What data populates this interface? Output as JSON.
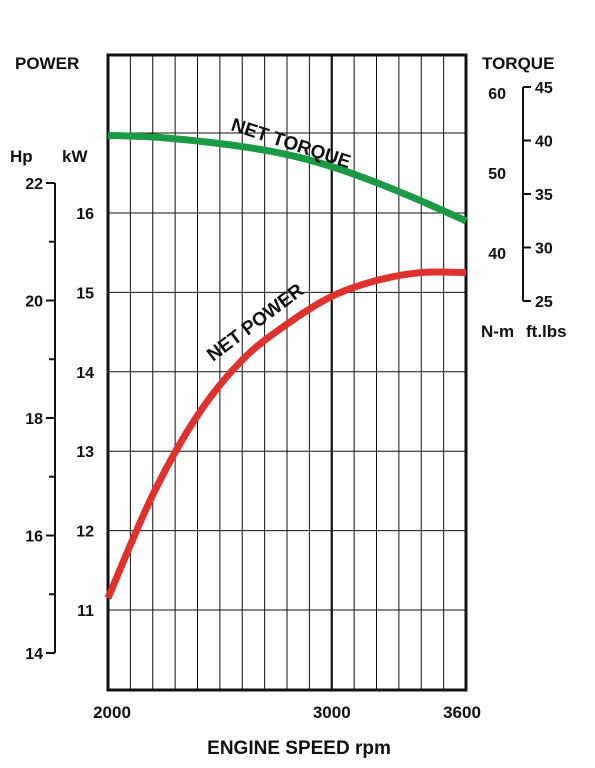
{
  "chart_data": {
    "type": "line",
    "x_unit_label": "ENGINE SPEED rpm",
    "x_range": [
      2000,
      3600
    ],
    "x_ticks": [
      2000,
      3000,
      3600
    ],
    "left_title": "POWER",
    "right_title": "TORQUE",
    "axes": {
      "hp": {
        "label": "Hp",
        "range": [
          14,
          22
        ],
        "ticks": [
          14,
          16,
          18,
          20,
          22
        ]
      },
      "kw": {
        "label": "kW",
        "range": [
          11,
          16
        ],
        "ticks": [
          11,
          12,
          13,
          14,
          15,
          16
        ]
      },
      "nm": {
        "label": "N-m",
        "range": [
          40,
          60
        ],
        "ticks": [
          40,
          50,
          60
        ]
      },
      "ftlbs": {
        "label": "ft.lbs",
        "range": [
          25,
          45
        ],
        "ticks": [
          25,
          30,
          35,
          40,
          45
        ]
      }
    },
    "series": [
      {
        "name": "NET TORQUE",
        "color": "#1a9a44",
        "axis": "nm",
        "x": [
          2000,
          2200,
          2400,
          2600,
          2800,
          3000,
          3200,
          3400,
          3600
        ],
        "y": [
          54.7,
          54.5,
          54.0,
          53.3,
          52.3,
          50.8,
          48.8,
          46.5,
          44.0
        ]
      },
      {
        "name": "NET POWER",
        "color": "#e0322d",
        "axis": "kw",
        "x": [
          2000,
          2200,
          2400,
          2600,
          2800,
          3000,
          3200,
          3400,
          3600
        ],
        "y": [
          11.15,
          12.45,
          13.45,
          14.15,
          14.6,
          14.95,
          15.15,
          15.25,
          15.25
        ]
      }
    ]
  }
}
